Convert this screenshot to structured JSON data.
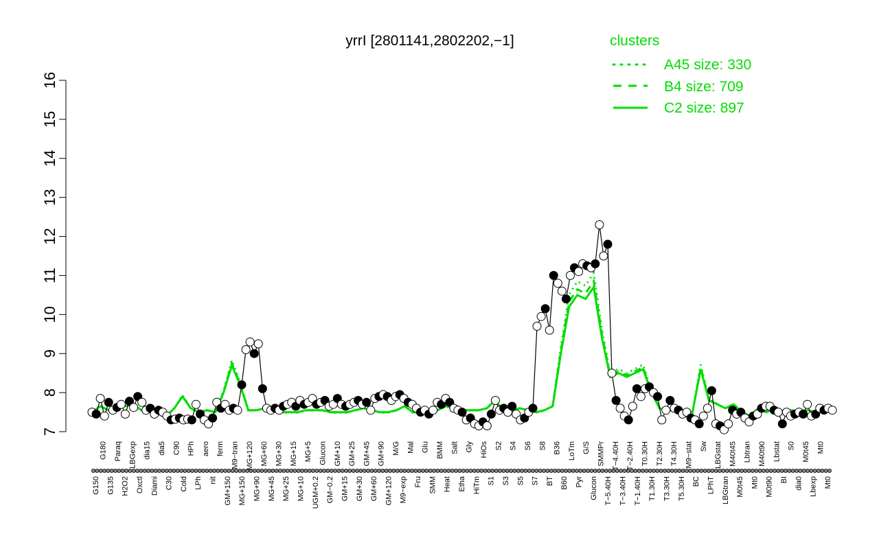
{
  "chart_data": {
    "type": "line",
    "title": "yrrI [2801141,2802202,−1]",
    "xlabel": "",
    "ylabel": "",
    "ylim": [
      7,
      16
    ],
    "y_ticks": [
      7,
      8,
      9,
      10,
      11,
      12,
      13,
      14,
      15,
      16
    ],
    "grid": false,
    "legend": {
      "title": "clusters",
      "position": "top-right",
      "color": "#00dd00",
      "entries": [
        {
          "label": "A45 size: 330",
          "style": "dotted"
        },
        {
          "label": "B4 size: 709",
          "style": "dashed"
        },
        {
          "label": "C2 size: 897",
          "style": "solid"
        }
      ]
    },
    "colors": {
      "cluster_lines": "#00dd00",
      "points_stroke": "#000000",
      "points_fill": "#ffffff",
      "points_dark": "#000000"
    },
    "x_tick_labels": [
      "G150",
      "G180",
      "G135",
      "Paraq",
      "H2O2",
      "LBGexp",
      "Oxctl",
      "dia15",
      "Diami",
      "dia5",
      "C30",
      "C90",
      "Cold",
      "HPh",
      "LPh",
      "aero",
      "nit",
      "ferm",
      "GM+150",
      "M9−tran",
      "MG+150",
      "MG+120",
      "MG+90",
      "MG+60",
      "MG+45",
      "MG+30",
      "MG+25",
      "MG+15",
      "MG+10",
      "MG+5",
      "UGM+0.2",
      "Glucon",
      "GM−0.2",
      "GM+10",
      "GM+15",
      "GM+25",
      "GM+30",
      "GM+45",
      "GM+60",
      "GM+90",
      "GM+120",
      "M/G",
      "M9−exp",
      "Mal",
      "Fru",
      "Glu",
      "SMM",
      "BMM",
      "Heat",
      "Salt",
      "Etha",
      "Gly",
      "HiTm",
      "HiOs",
      "S1",
      "S2",
      "S3",
      "S4",
      "S5",
      "S6",
      "S7",
      "S8",
      "BT",
      "B36",
      "B60",
      "LoTm",
      "Pyr",
      "G/S",
      "Glucon",
      "SMMPr",
      "T−5.40H",
      "T−4.40H",
      "T−3.40H",
      "T−2.40H",
      "T−1.40H",
      "T0.30H",
      "T1.30H",
      "T2.30H",
      "T3.30H",
      "T4.30H",
      "T5.30H",
      "M9−stat",
      "BC",
      "Sw",
      "LPhT",
      "LBGstat",
      "LBGtran",
      "M40t45",
      "M0t45",
      "Lbtran",
      "Mt0",
      "M40t90",
      "M0t90",
      "Lbstat",
      "BI",
      "S0",
      "dia0",
      "M0t45",
      "Lbexp",
      "Mt0",
      "Mt0"
    ],
    "series": [
      {
        "name": "",
        "kind": "points",
        "values": [
          7.5,
          7.45,
          7.85,
          7.4,
          7.75,
          7.55,
          7.62,
          7.7,
          7.45,
          7.78,
          7.62,
          7.9,
          7.75,
          7.55,
          7.6,
          7.45,
          7.55,
          7.5,
          7.4,
          7.3,
          7.32,
          7.35,
          7.3,
          7.32,
          7.3,
          7.7,
          7.45,
          7.3,
          7.2,
          7.35,
          7.75,
          7.6,
          7.7,
          7.55,
          7.6,
          7.55,
          8.2,
          9.1,
          9.3,
          9.0,
          9.25,
          8.1,
          7.6,
          7.55,
          7.6,
          7.55,
          7.65,
          7.7,
          7.75,
          7.65,
          7.8,
          7.7,
          7.75,
          7.85,
          7.7,
          7.75,
          7.8,
          7.65,
          7.7,
          7.85,
          7.7,
          7.65,
          7.7,
          7.75,
          7.8,
          7.7,
          7.75,
          7.55,
          7.85,
          7.9,
          7.95,
          7.9,
          7.8,
          7.9,
          7.95,
          7.85,
          7.75,
          7.7,
          7.6,
          7.5,
          7.55,
          7.45,
          7.55,
          7.75,
          7.7,
          7.85,
          7.75,
          7.6,
          7.55,
          7.5,
          7.3,
          7.35,
          7.2,
          7.15,
          7.25,
          7.15,
          7.45,
          7.8,
          7.55,
          7.6,
          7.5,
          7.65,
          7.45,
          7.3,
          7.35,
          7.5,
          7.6,
          9.7,
          9.95,
          10.15,
          9.6,
          11.0,
          10.8,
          10.6,
          10.4,
          11.0,
          11.2,
          11.1,
          11.3,
          11.25,
          11.2,
          11.3,
          12.3,
          11.5,
          11.8,
          8.5,
          7.8,
          7.6,
          7.4,
          7.3,
          7.65,
          8.1,
          7.9,
          8.1,
          8.15,
          8.0,
          7.9,
          7.3,
          7.55,
          7.8,
          7.6,
          7.55,
          7.45,
          7.5,
          7.35,
          7.3,
          7.2,
          7.4,
          7.6,
          8.05,
          7.2,
          7.15,
          7.05,
          7.2,
          7.55,
          7.45,
          7.5,
          7.35,
          7.25,
          7.4,
          7.45,
          7.6,
          7.65,
          7.65,
          7.55,
          7.5,
          7.2,
          7.5,
          7.4,
          7.45,
          7.5,
          7.45,
          7.7,
          7.4,
          7.45,
          7.6,
          7.55,
          7.6,
          7.55
        ]
      },
      {
        "name": "",
        "kind": "mean",
        "values": [
          7.5,
          7.65,
          7.55,
          7.6,
          7.65,
          7.7,
          7.55,
          7.5,
          7.45,
          7.4,
          7.6,
          7.9,
          7.6,
          7.5,
          7.55,
          7.5,
          8.0,
          8.7,
          8.2,
          7.55,
          7.55,
          7.6,
          7.55,
          7.5,
          7.5,
          7.5,
          7.55,
          7.55,
          7.55,
          7.5,
          7.5,
          7.5,
          7.55,
          7.6,
          7.55,
          7.5,
          7.5,
          7.55,
          7.65,
          7.5,
          7.5,
          7.45,
          7.55,
          7.65,
          7.6,
          7.55,
          7.55,
          7.55,
          7.6,
          7.8,
          7.55,
          7.55,
          7.6,
          7.55,
          7.5,
          7.55,
          7.65,
          9.0,
          10.2,
          10.5,
          10.4,
          10.7,
          9.4,
          8.4,
          8.5,
          8.4,
          8.5,
          8.6,
          8.0,
          7.6,
          7.55,
          7.55,
          7.5,
          7.5,
          8.6,
          7.8,
          7.7,
          7.6,
          7.7,
          7.5,
          7.4,
          7.6,
          7.5,
          7.6,
          7.5,
          7.55,
          7.5,
          7.55,
          7.5,
          7.5,
          7.55
        ]
      }
    ]
  }
}
